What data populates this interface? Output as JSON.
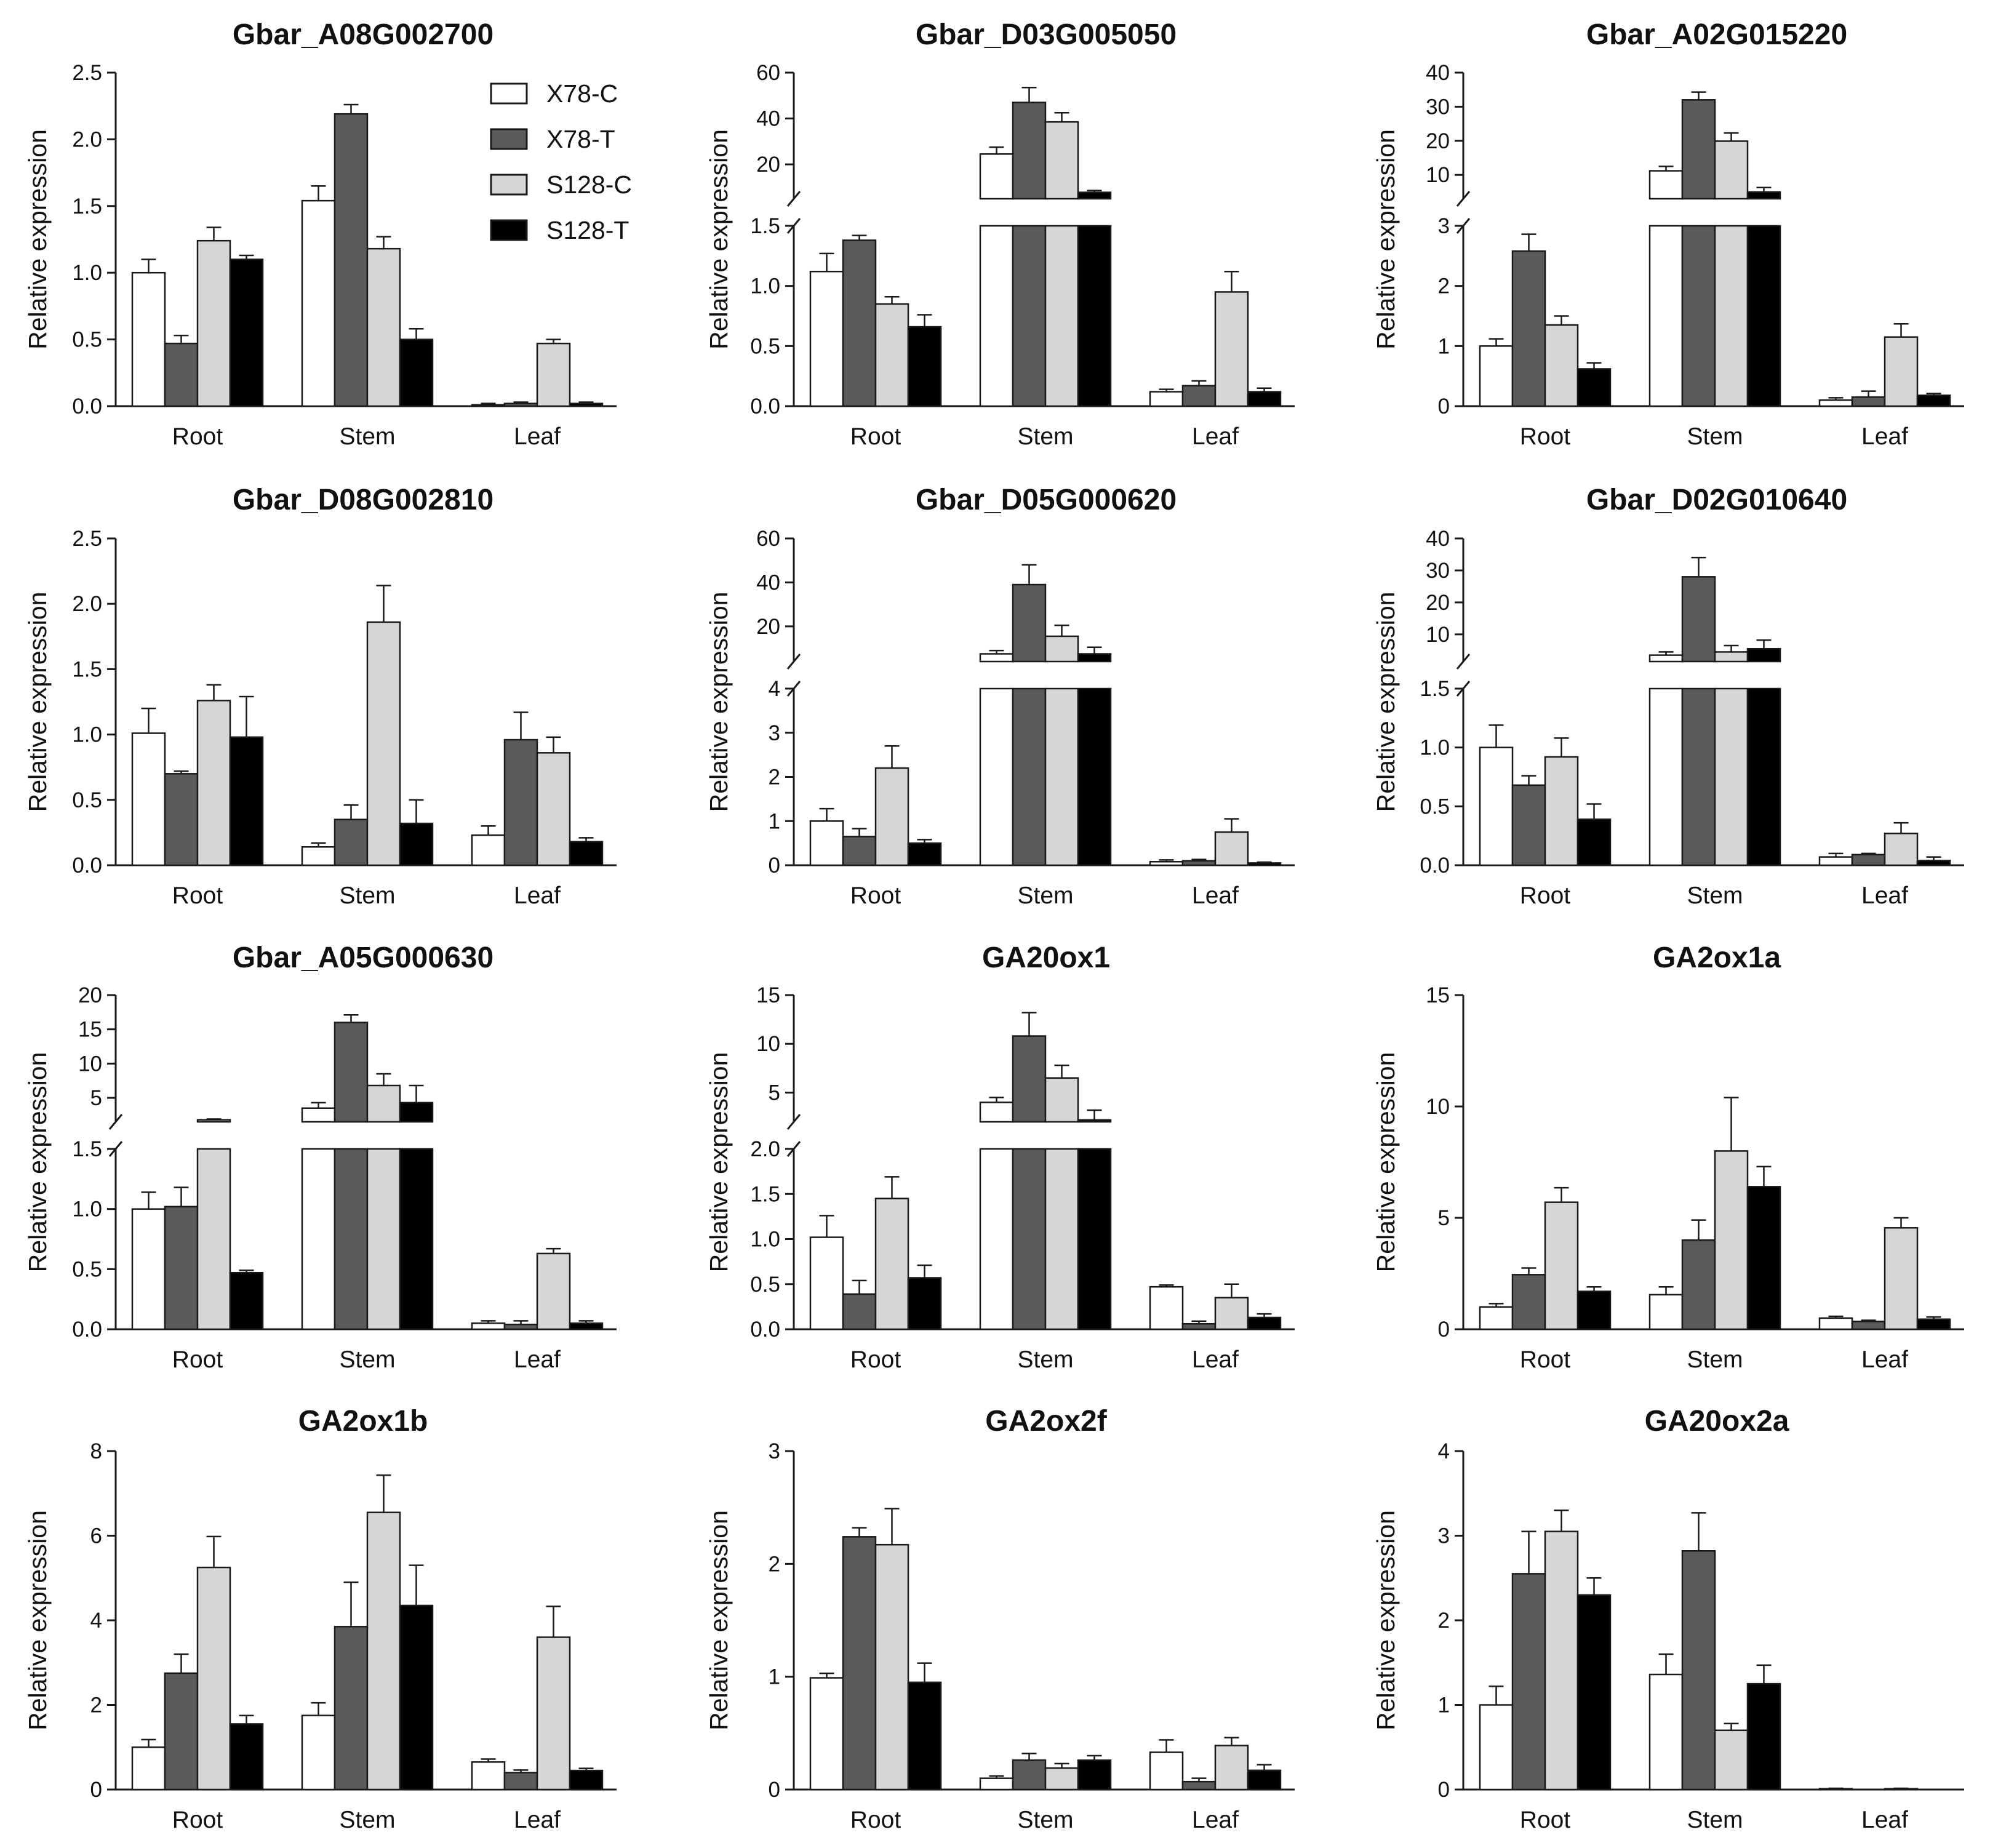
{
  "colors": {
    "X78-C": "#ffffff",
    "X78-T": "#5a5a5a",
    "S128-C": "#d6d6d6",
    "S128-T": "#000000",
    "axis": "#1a1a1a"
  },
  "legend": {
    "entries": [
      "X78-C",
      "X78-T",
      "S128-C",
      "S128-T"
    ]
  },
  "chart_data": [
    {
      "type": "bar",
      "title": "Gbar_A08G002700",
      "ylabel": "Relative expression",
      "categories": [
        "Root",
        "Stem",
        "Leaf"
      ],
      "ylim": [
        0,
        2.5
      ],
      "yticks": [
        "0.0",
        "0.5",
        "1.0",
        "1.5",
        "2.0",
        "2.5"
      ],
      "series": [
        {
          "name": "X78-C",
          "values": [
            1.0,
            1.54,
            0.01
          ],
          "errors": [
            0.1,
            0.11,
            0.01
          ]
        },
        {
          "name": "X78-T",
          "values": [
            0.47,
            2.19,
            0.02
          ],
          "errors": [
            0.06,
            0.07,
            0.01
          ]
        },
        {
          "name": "S128-C",
          "values": [
            1.24,
            1.18,
            0.47
          ],
          "errors": [
            0.1,
            0.09,
            0.03
          ]
        },
        {
          "name": "S128-T",
          "values": [
            1.1,
            0.5,
            0.02
          ],
          "errors": [
            0.03,
            0.08,
            0.01
          ]
        }
      ]
    },
    {
      "type": "bar",
      "title": "Gbar_D03G005050",
      "ylabel": "Relative expression",
      "categories": [
        "Root",
        "Stem",
        "Leaf"
      ],
      "broken_axis": true,
      "lower_ylim": [
        0,
        1.5
      ],
      "upper_ylim": [
        5,
        60
      ],
      "lower_ticks": [
        "0.0",
        "0.5",
        "1.0",
        "1.5"
      ],
      "upper_ticks": [
        "20",
        "40",
        "60"
      ],
      "series": [
        {
          "name": "X78-C",
          "values": [
            1.12,
            24.5,
            0.12
          ],
          "errors": [
            0.15,
            3.0,
            0.02
          ]
        },
        {
          "name": "X78-T",
          "values": [
            1.38,
            47.0,
            0.17
          ],
          "errors": [
            0.04,
            6.5,
            0.04
          ]
        },
        {
          "name": "S128-C",
          "values": [
            0.85,
            38.5,
            0.95
          ],
          "errors": [
            0.06,
            4.0,
            0.17
          ]
        },
        {
          "name": "S128-T",
          "values": [
            0.66,
            7.8,
            0.12
          ],
          "errors": [
            0.1,
            0.8,
            0.03
          ]
        }
      ]
    },
    {
      "type": "bar",
      "title": "Gbar_A02G015220",
      "ylabel": "Relative expression",
      "categories": [
        "Root",
        "Stem",
        "Leaf"
      ],
      "broken_axis": true,
      "lower_ylim": [
        0,
        3
      ],
      "upper_ylim": [
        3,
        40
      ],
      "lower_ticks": [
        "0",
        "1",
        "2",
        "3"
      ],
      "upper_ticks": [
        "10",
        "20",
        "30",
        "40"
      ],
      "series": [
        {
          "name": "X78-C",
          "values": [
            1.0,
            11.2,
            0.1
          ],
          "errors": [
            0.12,
            1.3,
            0.04
          ]
        },
        {
          "name": "X78-T",
          "values": [
            2.58,
            32.0,
            0.15
          ],
          "errors": [
            0.28,
            2.3,
            0.1
          ]
        },
        {
          "name": "S128-C",
          "values": [
            1.35,
            19.9,
            1.15
          ],
          "errors": [
            0.15,
            2.4,
            0.22
          ]
        },
        {
          "name": "S128-T",
          "values": [
            0.62,
            5.0,
            0.18
          ],
          "errors": [
            0.1,
            1.3,
            0.03
          ]
        }
      ]
    },
    {
      "type": "bar",
      "title": "Gbar_D08G002810",
      "ylabel": "Relative expression",
      "categories": [
        "Root",
        "Stem",
        "Leaf"
      ],
      "ylim": [
        0,
        2.5
      ],
      "yticks": [
        "0.0",
        "0.5",
        "1.0",
        "1.5",
        "2.0",
        "2.5"
      ],
      "series": [
        {
          "name": "X78-C",
          "values": [
            1.01,
            0.14,
            0.23
          ],
          "errors": [
            0.19,
            0.03,
            0.07
          ]
        },
        {
          "name": "X78-T",
          "values": [
            0.7,
            0.35,
            0.96
          ],
          "errors": [
            0.02,
            0.11,
            0.21
          ]
        },
        {
          "name": "S128-C",
          "values": [
            1.26,
            1.86,
            0.86
          ],
          "errors": [
            0.12,
            0.28,
            0.12
          ]
        },
        {
          "name": "S128-T",
          "values": [
            0.98,
            0.32,
            0.18
          ],
          "errors": [
            0.31,
            0.18,
            0.03
          ]
        }
      ]
    },
    {
      "type": "bar",
      "title": "Gbar_D05G000620",
      "ylabel": "Relative expression",
      "categories": [
        "Root",
        "Stem",
        "Leaf"
      ],
      "broken_axis": true,
      "lower_ylim": [
        0,
        4
      ],
      "upper_ylim": [
        4,
        60
      ],
      "lower_ticks": [
        "0",
        "1",
        "2",
        "3",
        "4"
      ],
      "upper_ticks": [
        "20",
        "40",
        "60"
      ],
      "series": [
        {
          "name": "X78-C",
          "values": [
            1.0,
            7.5,
            0.08
          ],
          "errors": [
            0.28,
            1.5,
            0.04
          ]
        },
        {
          "name": "X78-T",
          "values": [
            0.65,
            39.0,
            0.1
          ],
          "errors": [
            0.18,
            9.0,
            0.03
          ]
        },
        {
          "name": "S128-C",
          "values": [
            2.2,
            15.5,
            0.75
          ],
          "errors": [
            0.5,
            5.0,
            0.3
          ]
        },
        {
          "name": "S128-T",
          "values": [
            0.5,
            7.5,
            0.05
          ],
          "errors": [
            0.08,
            3.0,
            0.02
          ]
        }
      ]
    },
    {
      "type": "bar",
      "title": "Gbar_D02G010640",
      "ylabel": "Relative expression",
      "categories": [
        "Root",
        "Stem",
        "Leaf"
      ],
      "broken_axis": true,
      "lower_ylim": [
        0,
        1.5
      ],
      "upper_ylim": [
        1.5,
        40
      ],
      "lower_ticks": [
        "0.0",
        "0.5",
        "1.0",
        "1.5"
      ],
      "upper_ticks": [
        "10",
        "20",
        "30",
        "40"
      ],
      "series": [
        {
          "name": "X78-C",
          "values": [
            1.0,
            3.5,
            0.07
          ],
          "errors": [
            0.19,
            1.0,
            0.03
          ]
        },
        {
          "name": "X78-T",
          "values": [
            0.68,
            28.0,
            0.09
          ],
          "errors": [
            0.08,
            6.0,
            0.01
          ]
        },
        {
          "name": "S128-C",
          "values": [
            0.92,
            4.5,
            0.27
          ],
          "errors": [
            0.16,
            2.0,
            0.09
          ]
        },
        {
          "name": "S128-T",
          "values": [
            0.39,
            5.5,
            0.04
          ],
          "errors": [
            0.13,
            2.7,
            0.03
          ]
        }
      ]
    },
    {
      "type": "bar",
      "title": "Gbar_A05G000630",
      "ylabel": "Relative expression",
      "categories": [
        "Root",
        "Stem",
        "Leaf"
      ],
      "broken_axis": true,
      "lower_ylim": [
        0,
        1.5
      ],
      "upper_ylim": [
        1.5,
        20
      ],
      "lower_ticks": [
        "0.0",
        "0.5",
        "1.0",
        "1.5"
      ],
      "upper_ticks": [
        "5",
        "10",
        "15",
        "20"
      ],
      "series": [
        {
          "name": "X78-C",
          "values": [
            1.0,
            3.5,
            0.05
          ],
          "errors": [
            0.14,
            0.8,
            0.02
          ]
        },
        {
          "name": "X78-T",
          "values": [
            1.02,
            16.0,
            0.04
          ],
          "errors": [
            0.16,
            1.1,
            0.03
          ]
        },
        {
          "name": "S128-C",
          "values": [
            1.8,
            6.8,
            0.63
          ],
          "errors": [
            0.1,
            1.7,
            0.04
          ]
        },
        {
          "name": "S128-T",
          "values": [
            0.47,
            4.3,
            0.05
          ],
          "errors": [
            0.02,
            2.5,
            0.02
          ]
        }
      ]
    },
    {
      "type": "bar",
      "title": "GA20ox1",
      "ylabel": "Relative expression",
      "categories": [
        "Root",
        "Stem",
        "Leaf"
      ],
      "broken_axis": true,
      "lower_ylim": [
        0,
        2.0
      ],
      "upper_ylim": [
        2.0,
        15
      ],
      "lower_ticks": [
        "0.0",
        "0.5",
        "1.0",
        "1.5",
        "2.0"
      ],
      "upper_ticks": [
        "5",
        "10",
        "15"
      ],
      "series": [
        {
          "name": "X78-C",
          "values": [
            1.02,
            4.0,
            0.47
          ],
          "errors": [
            0.24,
            0.5,
            0.02
          ]
        },
        {
          "name": "X78-T",
          "values": [
            0.39,
            10.8,
            0.06
          ],
          "errors": [
            0.15,
            2.4,
            0.03
          ]
        },
        {
          "name": "S128-C",
          "values": [
            1.45,
            6.5,
            0.35
          ],
          "errors": [
            0.24,
            1.3,
            0.15
          ]
        },
        {
          "name": "S128-T",
          "values": [
            0.57,
            2.2,
            0.13
          ],
          "errors": [
            0.14,
            1.0,
            0.04
          ]
        }
      ]
    },
    {
      "type": "bar",
      "title": "GA2ox1a",
      "ylabel": "Relative expression",
      "categories": [
        "Root",
        "Stem",
        "Leaf"
      ],
      "ylim": [
        0,
        15
      ],
      "yticks": [
        "0",
        "5",
        "10",
        "15"
      ],
      "series": [
        {
          "name": "X78-C",
          "values": [
            1.0,
            1.55,
            0.5
          ],
          "errors": [
            0.15,
            0.35,
            0.08
          ]
        },
        {
          "name": "X78-T",
          "values": [
            2.45,
            4.0,
            0.35
          ],
          "errors": [
            0.3,
            0.9,
            0.05
          ]
        },
        {
          "name": "S128-C",
          "values": [
            5.7,
            8.0,
            4.55
          ],
          "errors": [
            0.65,
            2.4,
            0.45
          ]
        },
        {
          "name": "S128-T",
          "values": [
            1.7,
            6.4,
            0.45
          ],
          "errors": [
            0.2,
            0.9,
            0.1
          ]
        }
      ]
    },
    {
      "type": "bar",
      "title": "GA2ox1b",
      "ylabel": "Relative expression",
      "categories": [
        "Root",
        "Stem",
        "Leaf"
      ],
      "ylim": [
        0,
        8
      ],
      "yticks": [
        "0",
        "2",
        "4",
        "6",
        "8"
      ],
      "series": [
        {
          "name": "X78-C",
          "values": [
            1.0,
            1.75,
            0.65
          ],
          "errors": [
            0.18,
            0.3,
            0.07
          ]
        },
        {
          "name": "X78-T",
          "values": [
            2.75,
            3.85,
            0.4
          ],
          "errors": [
            0.45,
            1.05,
            0.06
          ]
        },
        {
          "name": "S128-C",
          "values": [
            5.25,
            6.55,
            3.6
          ],
          "errors": [
            0.73,
            0.88,
            0.73
          ]
        },
        {
          "name": "S128-T",
          "values": [
            1.55,
            4.35,
            0.45
          ],
          "errors": [
            0.2,
            0.95,
            0.05
          ]
        }
      ]
    },
    {
      "type": "bar",
      "title": "GA2ox2f",
      "ylabel": "Relative expression",
      "categories": [
        "Root",
        "Stem",
        "Leaf"
      ],
      "ylim": [
        0,
        3
      ],
      "yticks": [
        "0",
        "1",
        "2",
        "3"
      ],
      "series": [
        {
          "name": "X78-C",
          "values": [
            0.99,
            0.1,
            0.33
          ],
          "errors": [
            0.04,
            0.02,
            0.11
          ]
        },
        {
          "name": "X78-T",
          "values": [
            2.24,
            0.26,
            0.07
          ],
          "errors": [
            0.08,
            0.06,
            0.03
          ]
        },
        {
          "name": "S128-C",
          "values": [
            2.17,
            0.19,
            0.39
          ],
          "errors": [
            0.32,
            0.04,
            0.07
          ]
        },
        {
          "name": "S128-T",
          "values": [
            0.95,
            0.26,
            0.17
          ],
          "errors": [
            0.17,
            0.04,
            0.05
          ]
        }
      ]
    },
    {
      "type": "bar",
      "title": "GA20ox2a",
      "ylabel": "Relative expression",
      "categories": [
        "Root",
        "Stem",
        "Leaf"
      ],
      "ylim": [
        0,
        4
      ],
      "yticks": [
        "0",
        "1",
        "2",
        "3",
        "4"
      ],
      "series": [
        {
          "name": "X78-C",
          "values": [
            1.0,
            1.36,
            0.01
          ],
          "errors": [
            0.22,
            0.24,
            0.005
          ]
        },
        {
          "name": "X78-T",
          "values": [
            2.55,
            2.82,
            0.0
          ],
          "errors": [
            0.5,
            0.45,
            0.0
          ]
        },
        {
          "name": "S128-C",
          "values": [
            3.05,
            0.7,
            0.01
          ],
          "errors": [
            0.25,
            0.08,
            0.005
          ]
        },
        {
          "name": "S128-T",
          "values": [
            2.3,
            1.25,
            0.0
          ],
          "errors": [
            0.2,
            0.22,
            0.0
          ]
        }
      ]
    }
  ]
}
